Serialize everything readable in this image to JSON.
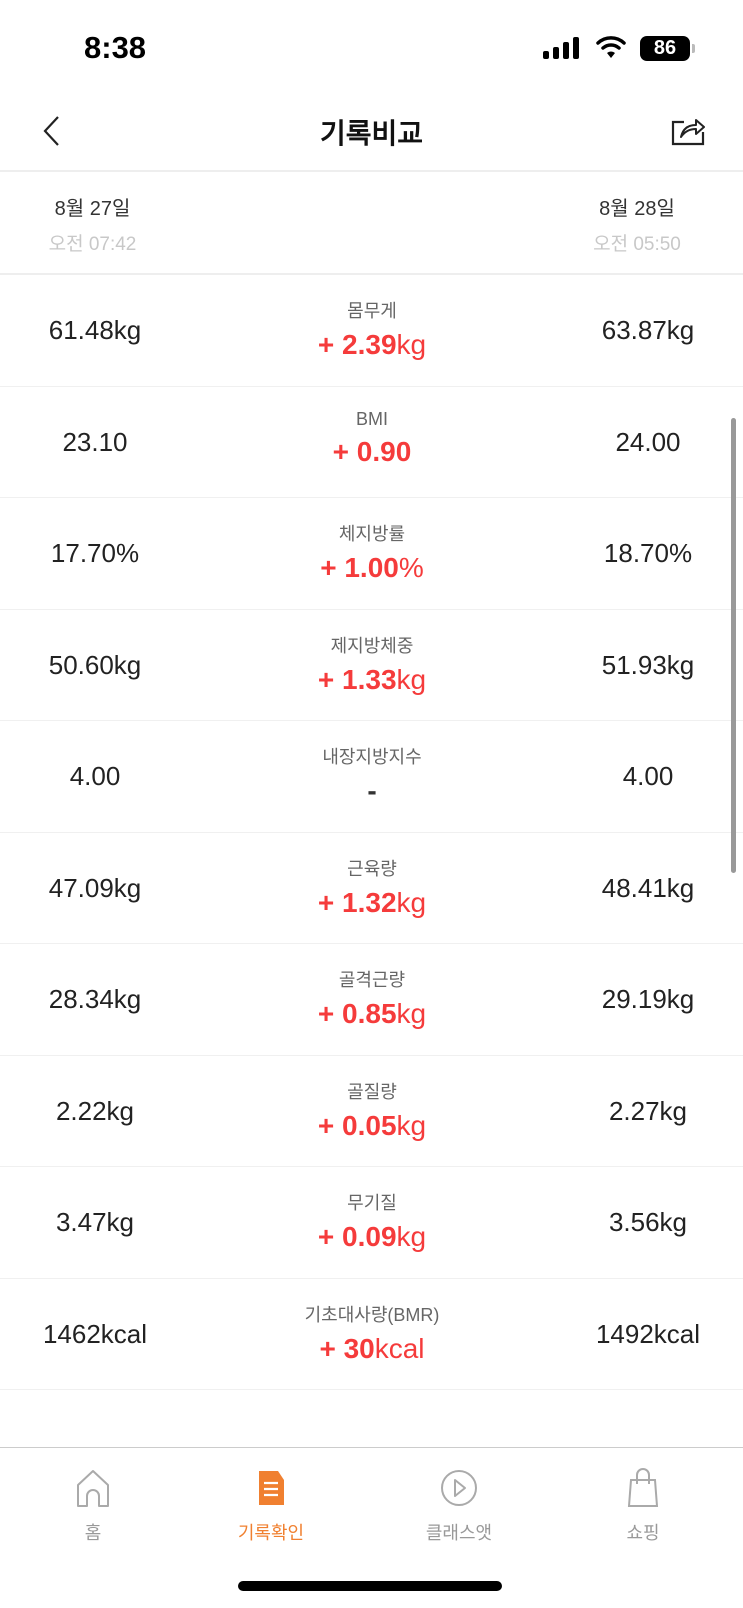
{
  "status": {
    "time": "8:38",
    "battery": "86"
  },
  "header": {
    "title": "기록비교",
    "back_icon": "chevron-left-icon",
    "share_icon": "share-icon"
  },
  "dates": {
    "left": {
      "day": "8월 27일",
      "time": "오전 07:42"
    },
    "right": {
      "day": "8월 28일",
      "time": "오전 05:50"
    }
  },
  "rows": [
    {
      "label": "몸무게",
      "left": "61.48kg",
      "right": "63.87kg",
      "delta": "+ 2.39",
      "unit": "kg"
    },
    {
      "label": "BMI",
      "left": "23.10",
      "right": "24.00",
      "delta": "+ 0.90",
      "unit": ""
    },
    {
      "label": "체지방률",
      "left": "17.70%",
      "right": "18.70%",
      "delta": "+ 1.00",
      "unit": "%"
    },
    {
      "label": "제지방체중",
      "left": "50.60kg",
      "right": "51.93kg",
      "delta": "+ 1.33",
      "unit": "kg"
    },
    {
      "label": "내장지방지수",
      "left": "4.00",
      "right": "4.00",
      "delta": "-",
      "unit": ""
    },
    {
      "label": "근육량",
      "left": "47.09kg",
      "right": "48.41kg",
      "delta": "+ 1.32",
      "unit": "kg"
    },
    {
      "label": "골격근량",
      "left": "28.34kg",
      "right": "29.19kg",
      "delta": "+ 0.85",
      "unit": "kg"
    },
    {
      "label": "골질량",
      "left": "2.22kg",
      "right": "2.27kg",
      "delta": "+ 0.05",
      "unit": "kg"
    },
    {
      "label": "무기질",
      "left": "3.47kg",
      "right": "3.56kg",
      "delta": "+ 0.09",
      "unit": "kg"
    },
    {
      "label": "기초대사량(BMR)",
      "left": "1462kcal",
      "right": "1492kcal",
      "delta": "+ 30",
      "unit": "kcal"
    }
  ],
  "tabs": [
    {
      "label": "홈",
      "icon": "home-icon"
    },
    {
      "label": "기록확인",
      "icon": "document-icon",
      "active": true
    },
    {
      "label": "클래스앳",
      "icon": "play-circle-icon"
    },
    {
      "label": "쇼핑",
      "icon": "shopping-bag-icon"
    }
  ],
  "colors": {
    "increase": "#f53b3b",
    "active_tab": "#f08030",
    "inactive_tab": "#999999"
  }
}
